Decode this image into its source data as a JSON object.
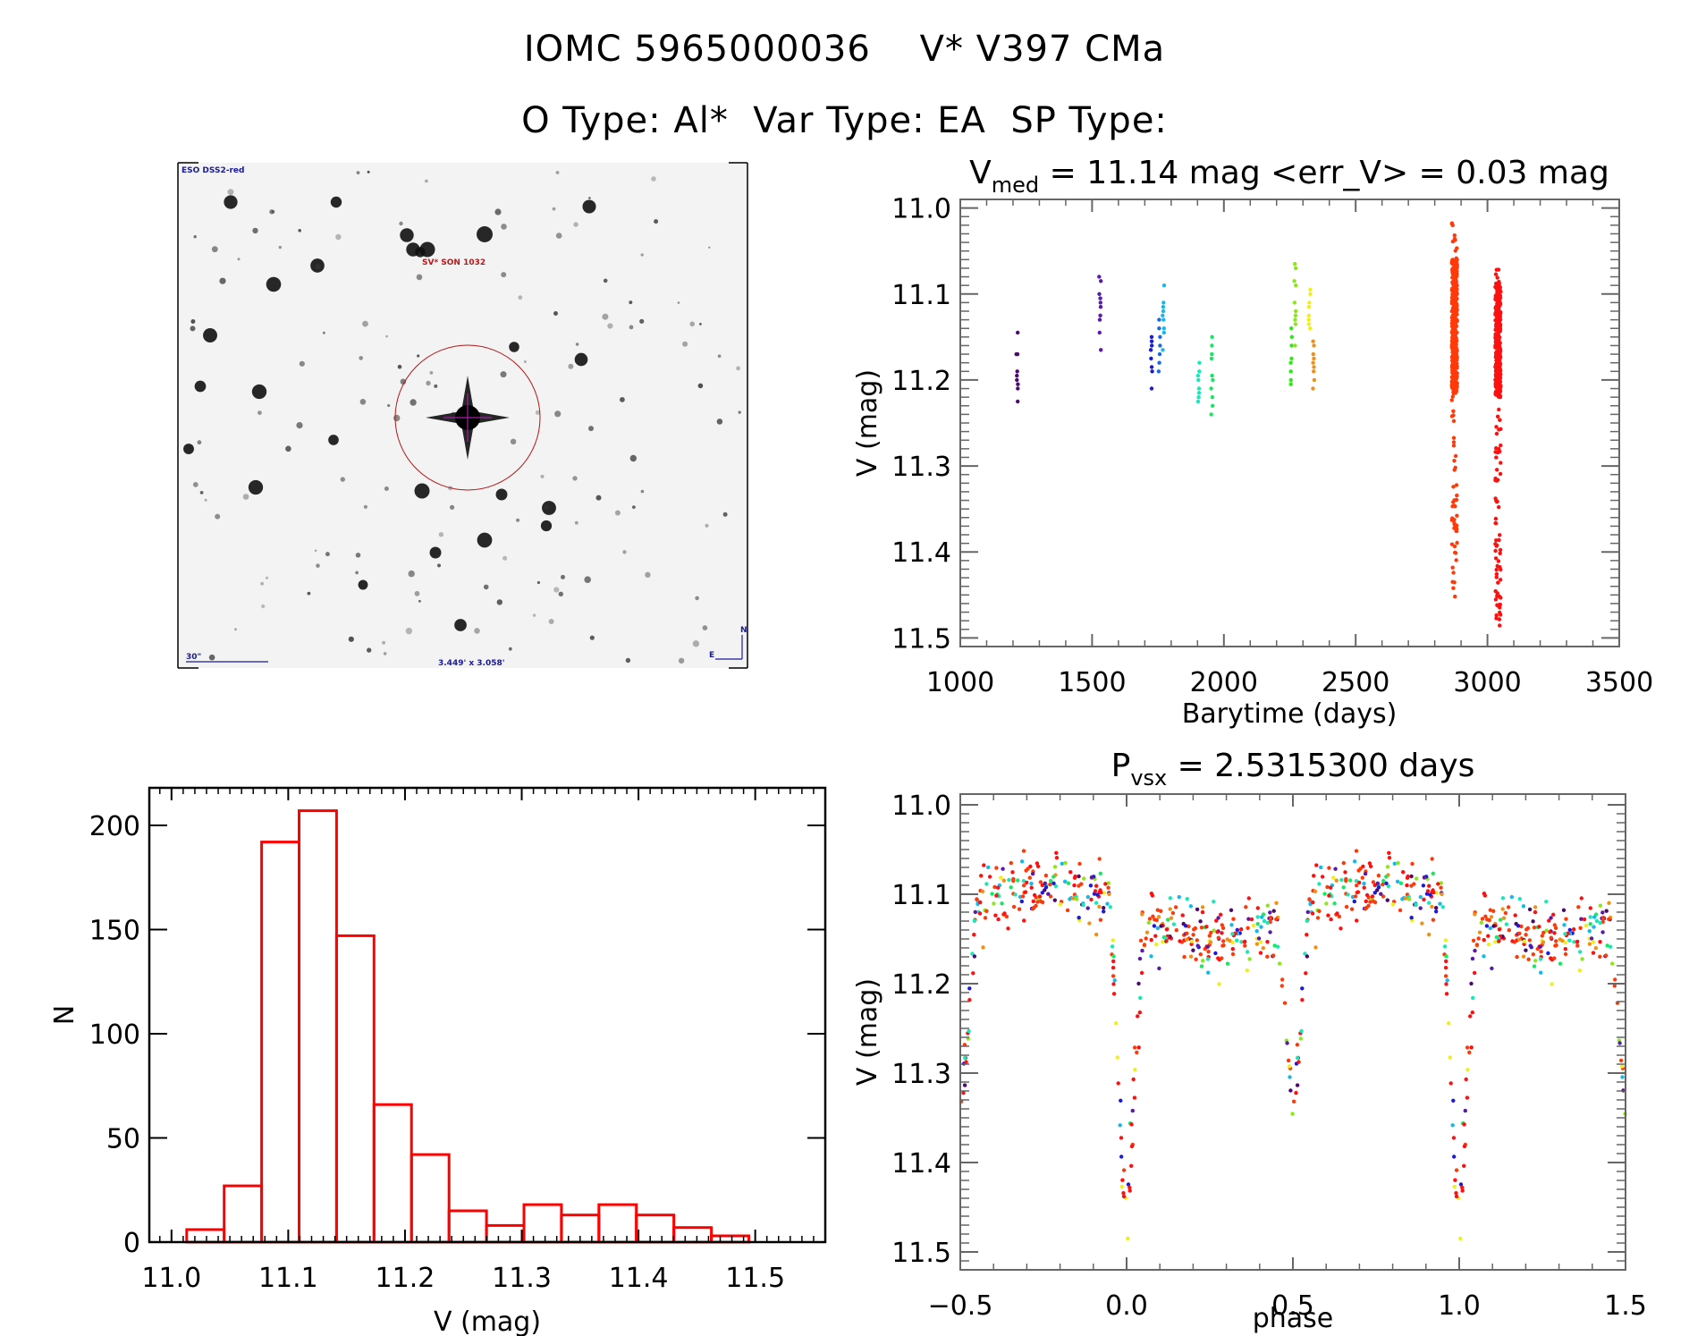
{
  "header": {
    "title_line1": "IOMC 5965000036    V* V397 CMa",
    "title_line2": "O Type: Al*  Var Type: EA  SP Type:"
  },
  "finder_image": {
    "survey_label": "ESO DSS2-red",
    "target_label": "SV* SON 1032",
    "scale_bar_label": "30\"",
    "field_size_label": "3.449' x 3.058'",
    "north_label": "N",
    "east_label": "E",
    "circle_color": "#b01818",
    "crosshair_color": "#a020a0"
  },
  "chart_data": [
    {
      "id": "lightcurve",
      "type": "scatter",
      "title_main": "V",
      "title_sub": "med",
      "title_rest": " = 11.14 mag <err_V> = 0.03 mag",
      "xlabel": "Barytime (days)",
      "ylabel": "V (mag)",
      "xlim": [
        1000,
        3500
      ],
      "ylim": [
        10.99,
        11.51
      ],
      "y_inverted": true,
      "xticks": [
        1000,
        1500,
        2000,
        2500,
        3000,
        3500
      ],
      "xtick_labels": [
        "1000",
        "1500",
        "2000",
        "2500",
        "3000",
        "3500"
      ],
      "yticks": [
        11.0,
        11.1,
        11.2,
        11.3,
        11.4,
        11.5
      ],
      "ytick_labels": [
        "11.0",
        "11.1",
        "11.2",
        "11.3",
        "11.4",
        "11.5"
      ],
      "groups": [
        {
          "x": 1215,
          "color": "#4b0a6e",
          "values": [
            11.145,
            11.17,
            11.17,
            11.19,
            11.195,
            11.2,
            11.205,
            11.21,
            11.225
          ]
        },
        {
          "x": 1530,
          "color": "#5a1aa8",
          "values": [
            11.08,
            11.085,
            11.1,
            11.105,
            11.11,
            11.115,
            11.125,
            11.13,
            11.145,
            11.165
          ]
        },
        {
          "x": 1725,
          "color": "#1a1ad8",
          "values": [
            11.15,
            11.155,
            11.16,
            11.165,
            11.175,
            11.185,
            11.19,
            11.21
          ]
        },
        {
          "x": 1755,
          "color": "#1a6ae8",
          "values": [
            11.13,
            11.14,
            11.15,
            11.16,
            11.17,
            11.18,
            11.19
          ]
        },
        {
          "x": 1770,
          "color": "#18b8e8",
          "values": [
            11.09,
            11.11,
            11.115,
            11.12,
            11.125,
            11.13,
            11.14,
            11.145,
            11.165
          ]
        },
        {
          "x": 1905,
          "color": "#18e8b8",
          "values": [
            11.18,
            11.19,
            11.195,
            11.2,
            11.21,
            11.215,
            11.22,
            11.225
          ]
        },
        {
          "x": 1955,
          "color": "#18e860",
          "values": [
            11.15,
            11.16,
            11.17,
            11.175,
            11.195,
            11.2,
            11.21,
            11.22,
            11.23,
            11.24
          ]
        },
        {
          "x": 2255,
          "color": "#30e818",
          "values": [
            11.14,
            11.15,
            11.16,
            11.175,
            11.18,
            11.19,
            11.2,
            11.205
          ]
        },
        {
          "x": 2270,
          "color": "#8ae818",
          "values": [
            11.065,
            11.07,
            11.085,
            11.09,
            11.11,
            11.12,
            11.125,
            11.13,
            11.135,
            11.16
          ]
        },
        {
          "x": 2325,
          "color": "#f0f018",
          "values": [
            11.095,
            11.1,
            11.11,
            11.115,
            11.125,
            11.13,
            11.135,
            11.14
          ]
        },
        {
          "x": 2340,
          "color": "#f09018",
          "values": [
            11.155,
            11.16,
            11.17,
            11.175,
            11.18,
            11.185,
            11.19,
            11.2,
            11.21
          ]
        },
        {
          "x": 2875,
          "color": "#ff3a0a",
          "range": [
            11.015,
            11.46
          ],
          "dense": [
            11.06,
            11.22
          ],
          "n": 420
        },
        {
          "x": 3040,
          "color": "#ff1010",
          "range": [
            11.07,
            11.49
          ],
          "dense": [
            11.09,
            11.22
          ],
          "n": 420
        }
      ]
    },
    {
      "id": "histogram",
      "type": "bar",
      "xlabel": "V (mag)",
      "ylabel": "N",
      "xlim": [
        10.981,
        11.56
      ],
      "ylim": [
        0,
        218
      ],
      "xticks": [
        11.0,
        11.1,
        11.2,
        11.3,
        11.4,
        11.5
      ],
      "xtick_labels": [
        "11.0",
        "11.1",
        "11.2",
        "11.3",
        "11.4",
        "11.5"
      ],
      "yticks": [
        0,
        50,
        100,
        150,
        200
      ],
      "ytick_labels": [
        "0",
        "50",
        "100",
        "150",
        "200"
      ],
      "bin_start": 11.013,
      "bin_width": 0.0321,
      "values": [
        6,
        27,
        192,
        207,
        147,
        66,
        42,
        15,
        8,
        18,
        13,
        18,
        13,
        7,
        3
      ],
      "bar_color": "#ff0000"
    },
    {
      "id": "phased",
      "type": "scatter",
      "title_main": "P",
      "title_sub": "vsx",
      "title_rest": " = 2.5315300 days",
      "xlabel": "phase",
      "ylabel": "V (mag)",
      "period_days": 2.53153,
      "xlim": [
        -0.5,
        1.5
      ],
      "ylim": [
        10.988,
        11.52
      ],
      "y_inverted": true,
      "xticks": [
        -0.5,
        0.0,
        0.5,
        1.0,
        1.5
      ],
      "xtick_labels": [
        "−0.5",
        "0.0",
        "0.5",
        "1.0",
        "1.5"
      ],
      "yticks": [
        11.0,
        11.1,
        11.2,
        11.3,
        11.4,
        11.5
      ],
      "ytick_labels": [
        "11.0",
        "11.1",
        "11.2",
        "11.3",
        "11.4",
        "11.5"
      ],
      "light_curve_shape": {
        "out_of_eclipse_mag": 11.12,
        "primary_eclipse_phase": 0.0,
        "primary_eclipse_depth_mag": 11.49,
        "secondary_eclipse_phase": 0.5,
        "secondary_eclipse_depth_mag": 11.34,
        "scatter_mag": 0.04
      }
    }
  ]
}
